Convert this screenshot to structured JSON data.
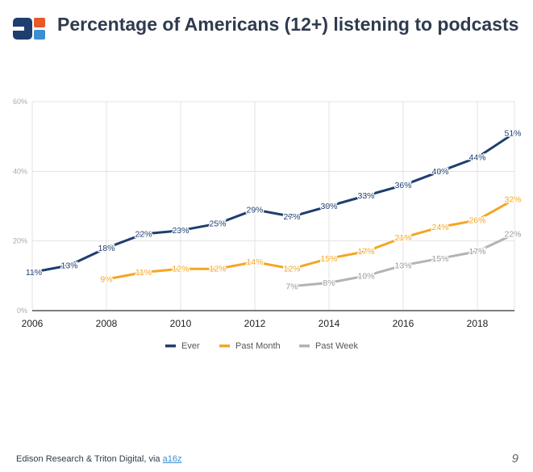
{
  "header": {
    "title": "Percentage of Americans (12+) listening to podcasts",
    "logo_colors": [
      "#1f3e70",
      "#e85a2a",
      "#3b8fd3"
    ]
  },
  "footer": {
    "source_text": "Edison Research & Triton Digital, via",
    "source_link": "a16z",
    "page_number": "9"
  },
  "chart_data": {
    "type": "line",
    "title": "",
    "xlabel": "",
    "ylabel": "",
    "xlim": [
      2006,
      2019
    ],
    "ylim": [
      0,
      60
    ],
    "x_ticks": [
      "2006",
      "2008",
      "2010",
      "2012",
      "2014",
      "2016",
      "2018"
    ],
    "y_ticks": [
      "0%",
      "20%",
      "40%",
      "60%"
    ],
    "grid": true,
    "legend_position": "bottom",
    "series": [
      {
        "name": "Ever",
        "color": "#1f3e70",
        "x": [
          2006,
          2007,
          2008,
          2009,
          2010,
          2011,
          2012,
          2013,
          2014,
          2015,
          2016,
          2017,
          2018,
          2019
        ],
        "values": [
          11,
          13,
          18,
          22,
          23,
          25,
          29,
          27,
          30,
          33,
          36,
          40,
          44,
          51
        ],
        "labels": [
          "11%",
          "13%",
          "18%",
          "22%",
          "23%",
          "25%",
          "29%",
          "27%",
          "30%",
          "33%",
          "36%",
          "40%",
          "44%",
          "51%"
        ]
      },
      {
        "name": "Past Month",
        "color": "#f5a623",
        "x": [
          2008,
          2009,
          2010,
          2011,
          2012,
          2013,
          2014,
          2015,
          2016,
          2017,
          2018,
          2019
        ],
        "values": [
          9,
          11,
          12,
          12,
          14,
          12,
          15,
          17,
          21,
          24,
          26,
          32
        ],
        "labels": [
          "9%",
          "11%",
          "12%",
          "12%",
          "14%",
          "12%",
          "15%",
          "17%",
          "21%",
          "24%",
          "26%",
          "32%"
        ]
      },
      {
        "name": "Past Week",
        "color": "#b3b3b3",
        "x": [
          2013,
          2014,
          2015,
          2016,
          2017,
          2018,
          2019
        ],
        "values": [
          7,
          8,
          10,
          13,
          15,
          17,
          22
        ],
        "labels": [
          "7%",
          "8%",
          "10%",
          "13%",
          "15%",
          "17%",
          "22%"
        ]
      }
    ]
  }
}
